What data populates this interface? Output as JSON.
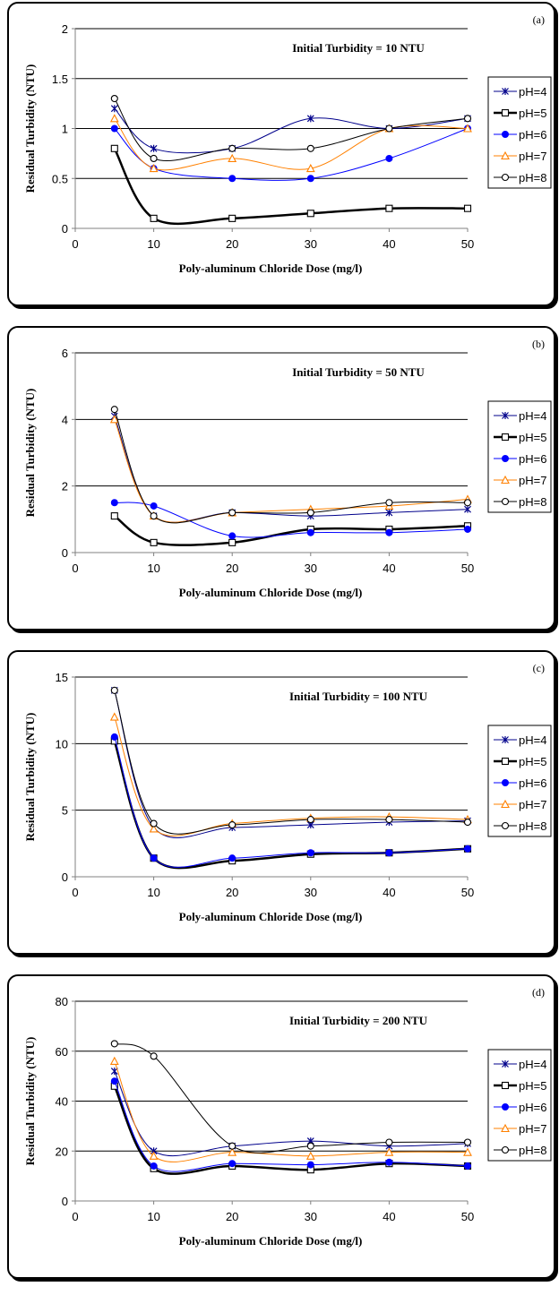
{
  "legend": [
    {
      "name": "pH=4",
      "color": "#00008b",
      "marker": "star",
      "width": 1
    },
    {
      "name": "pH=5",
      "color": "#000000",
      "marker": "square",
      "width": 2.5
    },
    {
      "name": "pH=6",
      "color": "#0000ff",
      "marker": "circle-filled",
      "width": 1
    },
    {
      "name": "pH=7",
      "color": "#ff8000",
      "marker": "triangle",
      "width": 1
    },
    {
      "name": "pH=8",
      "color": "#000000",
      "marker": "circle-open",
      "width": 1
    }
  ],
  "chart_data": [
    {
      "type": "line",
      "panel_label": "(a)",
      "title": "Initial Turbidity = 10 NTU",
      "xlabel": "Poly-aluminum Chloride Dose (mg/l)",
      "ylabel": "Residual Turbidity (NTU)",
      "xlim": [
        0,
        50
      ],
      "ylim": [
        0,
        2
      ],
      "xticks": [
        0,
        10,
        20,
        30,
        40,
        50
      ],
      "yticks": [
        0,
        0.5,
        1,
        1.5,
        2
      ],
      "ytick_labels": [
        "0",
        "0.5",
        "1",
        "1.5",
        "2"
      ],
      "x": [
        5,
        10,
        20,
        30,
        40,
        50
      ],
      "series": [
        {
          "name": "pH=4",
          "values": [
            1.2,
            0.8,
            0.8,
            1.1,
            1.0,
            1.1
          ]
        },
        {
          "name": "pH=5",
          "values": [
            0.8,
            0.1,
            0.1,
            0.15,
            0.2,
            0.2
          ]
        },
        {
          "name": "pH=6",
          "values": [
            1.0,
            0.6,
            0.5,
            0.5,
            0.7,
            1.0
          ]
        },
        {
          "name": "pH=7",
          "values": [
            1.1,
            0.6,
            0.7,
            0.6,
            1.0,
            1.0
          ]
        },
        {
          "name": "pH=8",
          "values": [
            1.3,
            0.7,
            0.8,
            0.8,
            1.0,
            1.1
          ]
        }
      ]
    },
    {
      "type": "line",
      "panel_label": "(b)",
      "title": "Initial Turbidity = 50 NTU",
      "xlabel": "Poly-aluminum Chloride Dose (mg/l)",
      "ylabel": "Residual Turbidity (NTU)",
      "xlim": [
        0,
        50
      ],
      "ylim": [
        0,
        6
      ],
      "xticks": [
        0,
        10,
        20,
        30,
        40,
        50
      ],
      "yticks": [
        0,
        2,
        4,
        6
      ],
      "ytick_labels": [
        "0",
        "2",
        "4",
        "6"
      ],
      "x": [
        5,
        10,
        20,
        30,
        40,
        50
      ],
      "series": [
        {
          "name": "pH=4",
          "values": [
            4.1,
            1.1,
            1.2,
            1.1,
            1.2,
            1.3
          ]
        },
        {
          "name": "pH=5",
          "values": [
            1.1,
            0.3,
            0.3,
            0.7,
            0.7,
            0.8
          ]
        },
        {
          "name": "pH=6",
          "values": [
            1.5,
            1.4,
            0.5,
            0.6,
            0.6,
            0.7
          ]
        },
        {
          "name": "pH=7",
          "values": [
            4.0,
            1.1,
            1.2,
            1.3,
            1.4,
            1.6
          ]
        },
        {
          "name": "pH=8",
          "values": [
            4.3,
            1.1,
            1.2,
            1.2,
            1.5,
            1.5
          ]
        }
      ]
    },
    {
      "type": "line",
      "panel_label": "(c)",
      "title": "Initial Turbidity = 100 NTU",
      "xlabel": "Poly-aluminum Chloride Dose (mg/l)",
      "ylabel": "Residual Turbidity (NTU)",
      "xlim": [
        0,
        50
      ],
      "ylim": [
        0,
        15
      ],
      "xticks": [
        0,
        10,
        20,
        30,
        40,
        50
      ],
      "yticks": [
        0,
        5,
        10,
        15
      ],
      "ytick_labels": [
        "0",
        "5",
        "10",
        "15"
      ],
      "x": [
        5,
        10,
        20,
        30,
        40,
        50
      ],
      "series": [
        {
          "name": "pH=4",
          "values": [
            14.0,
            3.7,
            3.7,
            3.9,
            4.1,
            4.2
          ]
        },
        {
          "name": "pH=5",
          "values": [
            10.2,
            1.4,
            1.2,
            1.7,
            1.8,
            2.1
          ]
        },
        {
          "name": "pH=6",
          "values": [
            10.5,
            1.4,
            1.4,
            1.8,
            1.8,
            2.1
          ]
        },
        {
          "name": "pH=7",
          "values": [
            12.0,
            3.6,
            4.0,
            4.4,
            4.5,
            4.3
          ]
        },
        {
          "name": "pH=8",
          "values": [
            14.0,
            4.0,
            3.9,
            4.3,
            4.3,
            4.1
          ]
        }
      ]
    },
    {
      "type": "line",
      "panel_label": "(d)",
      "title": "Initial Turbidity = 200 NTU",
      "xlabel": "Poly-aluminum Chloride Dose (mg/l)",
      "ylabel": "Residual Turbidity (NTU)",
      "xlim": [
        0,
        50
      ],
      "ylim": [
        0,
        80
      ],
      "xticks": [
        0,
        10,
        20,
        30,
        40,
        50
      ],
      "yticks": [
        0,
        20,
        40,
        60,
        80
      ],
      "ytick_labels": [
        "0",
        "20",
        "40",
        "60",
        "80"
      ],
      "x": [
        5,
        10,
        20,
        30,
        40,
        50
      ],
      "series": [
        {
          "name": "pH=4",
          "values": [
            52,
            20,
            22,
            24,
            22,
            23
          ]
        },
        {
          "name": "pH=5",
          "values": [
            46,
            13,
            14,
            12.5,
            15,
            14
          ]
        },
        {
          "name": "pH=6",
          "values": [
            48,
            14,
            15,
            14.5,
            15.5,
            14
          ]
        },
        {
          "name": "pH=7",
          "values": [
            56,
            18,
            19.5,
            18,
            19.5,
            19.5
          ]
        },
        {
          "name": "pH=8",
          "values": [
            63,
            58,
            22,
            22,
            23.5,
            23.5
          ]
        }
      ]
    }
  ]
}
